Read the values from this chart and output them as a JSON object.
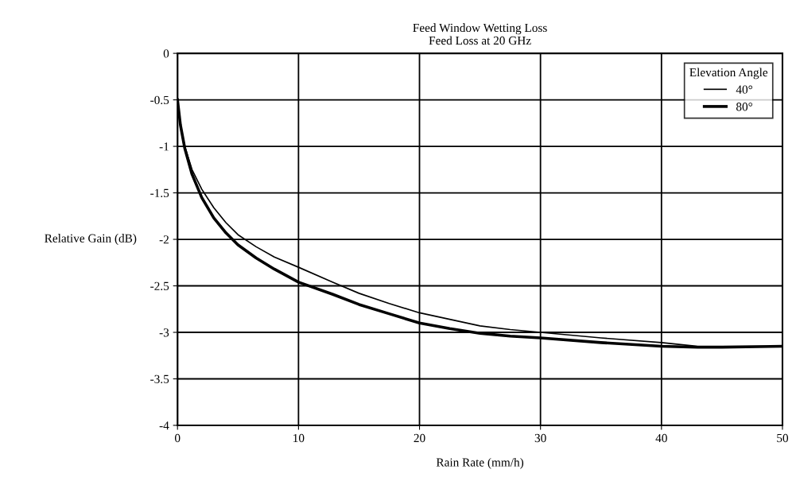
{
  "chart_data": {
    "type": "line",
    "title": "Feed Window Wetting Loss",
    "subtitle": "Feed Loss at 20 GHz",
    "xlabel": "Rain Rate (mm/h)",
    "ylabel": "Relative Gain (dB)",
    "legend_title": "Elevation Angle",
    "x": [
      0,
      0.24,
      0.6,
      1.2,
      2.0,
      3.0,
      4.0,
      5.0,
      6.5,
      8.0,
      10,
      12.8,
      15,
      17.5,
      20,
      22.5,
      25,
      27.5,
      30,
      35,
      40,
      43,
      45,
      50
    ],
    "series": [
      {
        "name": "40°",
        "color": "#000000",
        "values": [
          -0.5,
          -0.77,
          -1.0,
          -1.25,
          -1.46,
          -1.66,
          -1.82,
          -1.95,
          -2.08,
          -2.19,
          -2.3,
          -2.46,
          -2.58,
          -2.69,
          -2.79,
          -2.86,
          -2.93,
          -2.97,
          -3.0,
          -3.06,
          -3.11,
          -3.15,
          -3.15,
          -3.15
        ]
      },
      {
        "name": "80°",
        "color": "#000000",
        "values": [
          -0.5,
          -0.77,
          -1.02,
          -1.3,
          -1.55,
          -1.77,
          -1.93,
          -2.06,
          -2.2,
          -2.32,
          -2.46,
          -2.59,
          -2.7,
          -2.8,
          -2.9,
          -2.96,
          -3.01,
          -3.04,
          -3.06,
          -3.11,
          -3.15,
          -3.16,
          -3.16,
          -3.15
        ]
      }
    ],
    "xlim": [
      0,
      50
    ],
    "xticks": [
      0,
      10,
      20,
      30,
      40,
      50
    ],
    "ylim": [
      -4,
      0
    ],
    "yticks": [
      {
        "value": -4,
        "label": "-4"
      },
      {
        "value": -3.5,
        "label": "-3.5"
      },
      {
        "value": -3,
        "label": "-3"
      },
      {
        "value": -2.5,
        "label": "-2.5"
      },
      {
        "value": -2,
        "label": "-2"
      },
      {
        "value": -1.5,
        "label": "-1.5"
      },
      {
        "value": -1,
        "label": "-1"
      },
      {
        "value": -0.5,
        "label": "-0.5"
      },
      0
    ],
    "grid": true,
    "legend": "top right",
    "marker": "none",
    "line_style": "solid"
  }
}
